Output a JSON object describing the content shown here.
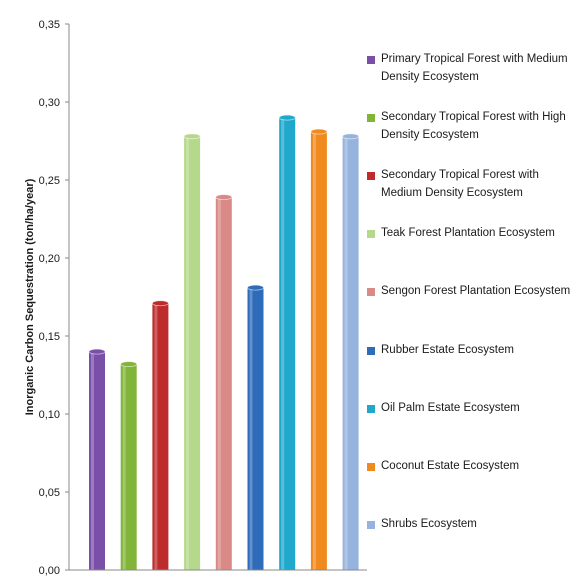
{
  "chart_data": {
    "type": "bar",
    "ylabel": "Inorganic Carbon Sequestration (ton/ha/year)",
    "xlabel": "",
    "ylim": [
      0,
      0.35
    ],
    "yticks": [
      "0,00",
      "0,05",
      "0,10",
      "0,15",
      "0,20",
      "0,25",
      "0,30",
      "0,35"
    ],
    "grid": false,
    "legend_position": "right",
    "series": [
      {
        "name": "Primary Tropical Forest with Medium Density Ecosystem",
        "value": 0.14,
        "color": "#7a4fa8"
      },
      {
        "name": "Secondary Tropical Forest with High Density Ecosystem",
        "value": 0.132,
        "color": "#82b43a"
      },
      {
        "name": "Secondary Tropical Forest with Medium Density Ecosystem",
        "value": 0.171,
        "color": "#bd2b2b"
      },
      {
        "name": "Teak Forest Plantation Ecosystem",
        "value": 0.278,
        "color": "#b5d88a"
      },
      {
        "name": "Sengon Forest Plantation Ecosystem",
        "value": 0.239,
        "color": "#d98a86"
      },
      {
        "name": "Rubber Estate Ecosystem",
        "value": 0.181,
        "color": "#2e6bb8"
      },
      {
        "name": "Oil Palm Estate Ecosystem",
        "value": 0.29,
        "color": "#1fa8cc"
      },
      {
        "name": "Coconut Estate Ecosystem",
        "value": 0.281,
        "color": "#f08a1e"
      },
      {
        "name": "Shrubs Ecosystem",
        "value": 0.278,
        "color": "#95b3dd"
      }
    ]
  }
}
